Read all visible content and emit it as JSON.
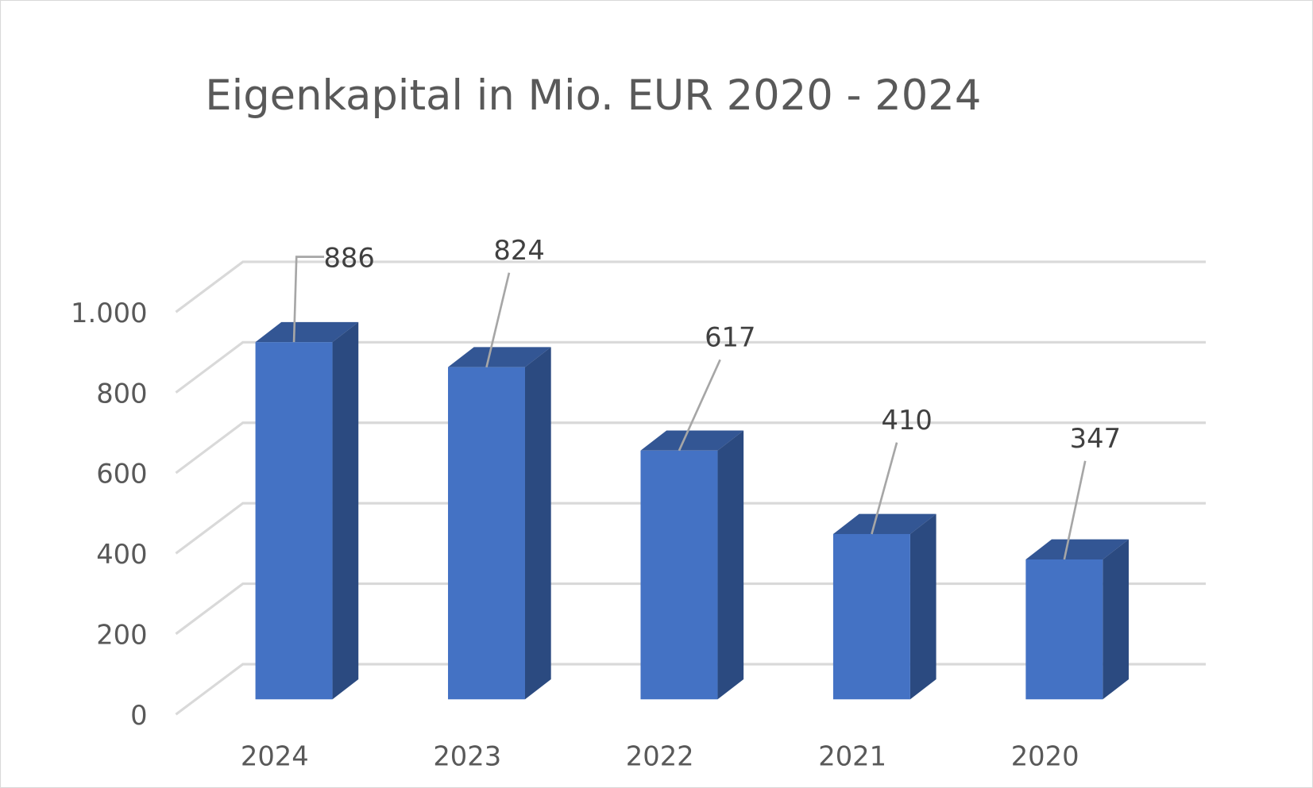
{
  "chart_data": {
    "type": "bar",
    "style": "3d-clustered-column",
    "title": "Eigenkapital in Mio. EUR 2020 - 2024",
    "xlabel": "",
    "ylabel": "",
    "categories": [
      "2024",
      "2023",
      "2022",
      "2021",
      "2020"
    ],
    "values": [
      886,
      824,
      617,
      410,
      347
    ],
    "data_labels": [
      "886",
      "824",
      "617",
      "410",
      "347"
    ],
    "ylim": [
      0,
      1000
    ],
    "yticks": [
      0,
      200,
      400,
      600,
      800,
      1000
    ],
    "ytick_labels": [
      "0",
      "200",
      "400",
      "600",
      "800",
      "1.000"
    ],
    "grid": true,
    "legend": "none",
    "colors": {
      "bar_front": "#4472C4",
      "bar_top": "#335694",
      "bar_side": "#2B4A80",
      "gridline": "#D9D9D9",
      "text": "#595959",
      "data_label": "#404040",
      "leader": "#A6A6A6"
    }
  }
}
